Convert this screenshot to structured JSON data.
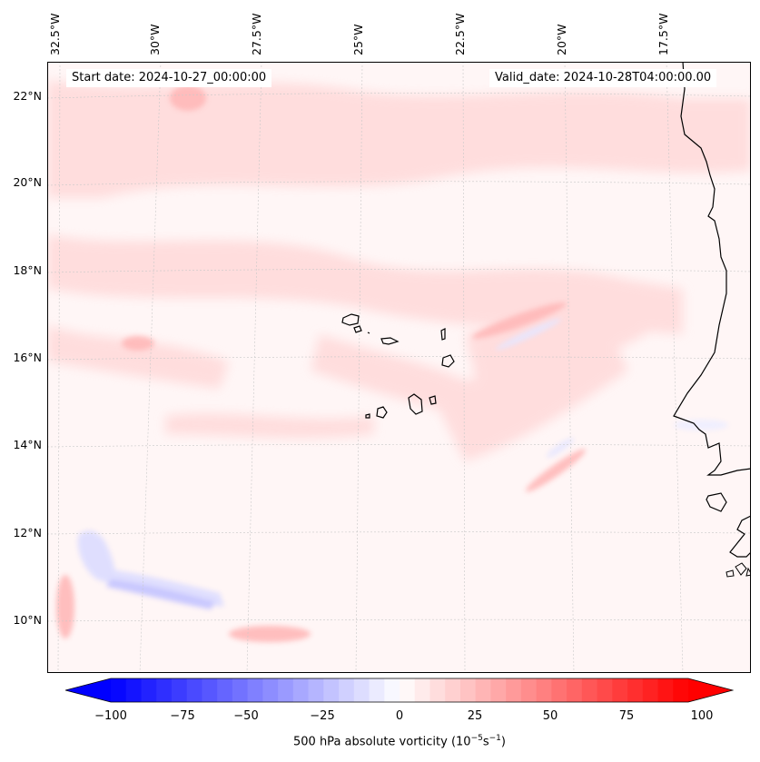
{
  "map": {
    "start_date": "Start date: 2024-10-27_00:00:00",
    "valid_date": "Valid_date: 2024-10-28T04:00:00.00",
    "longitude_labels": [
      "32.5°W",
      "30°W",
      "27.5°W",
      "25°W",
      "22.5°W",
      "20°W",
      "17.5°W"
    ],
    "latitude_labels": [
      "22°N",
      "20°N",
      "18°N",
      "16°N",
      "14°N",
      "12°N",
      "10°N"
    ],
    "colormap": [
      "#0000ff",
      "#ffffff",
      "#ff0000"
    ],
    "coastline_color": "#000000"
  },
  "colorbar": {
    "ticks": [
      "−100",
      "−75",
      "−50",
      "−25",
      "0",
      "25",
      "50",
      "75",
      "100"
    ],
    "min": -100,
    "max": 100,
    "label_prefix": "500 hPa absolute vorticity (10",
    "label_exp1": "−5",
    "label_mid": "s",
    "label_exp2": "−1",
    "label_suffix": ")"
  }
}
